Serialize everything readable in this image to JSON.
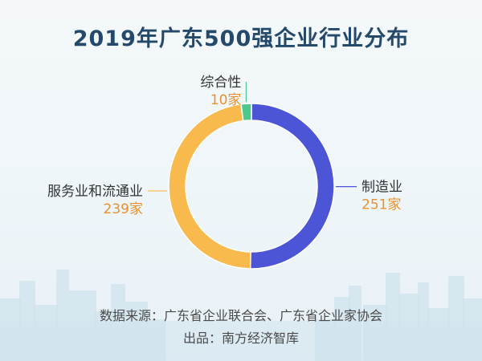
{
  "chart_data": {
    "type": "pie",
    "title": "2019年广东500强企业行业分布",
    "unit": "家",
    "slices": [
      {
        "name": "制造业",
        "value": 251,
        "value_label": "251家",
        "color": "#4b55d6"
      },
      {
        "name": "服务业和流通业",
        "value": 239,
        "value_label": "239家",
        "color": "#f8b94d"
      },
      {
        "name": "综合性",
        "value": 10,
        "value_label": "10家",
        "color": "#4cc98a"
      }
    ]
  },
  "footer": {
    "source": "数据来源：广东省企业联合会、广东省企业家协会",
    "producer": "出品：南方经济智库"
  },
  "colors": {
    "title": "#25496a",
    "value_text": "#e8912f",
    "background": "#eef5f9",
    "skyline": "#cfe3ee"
  }
}
